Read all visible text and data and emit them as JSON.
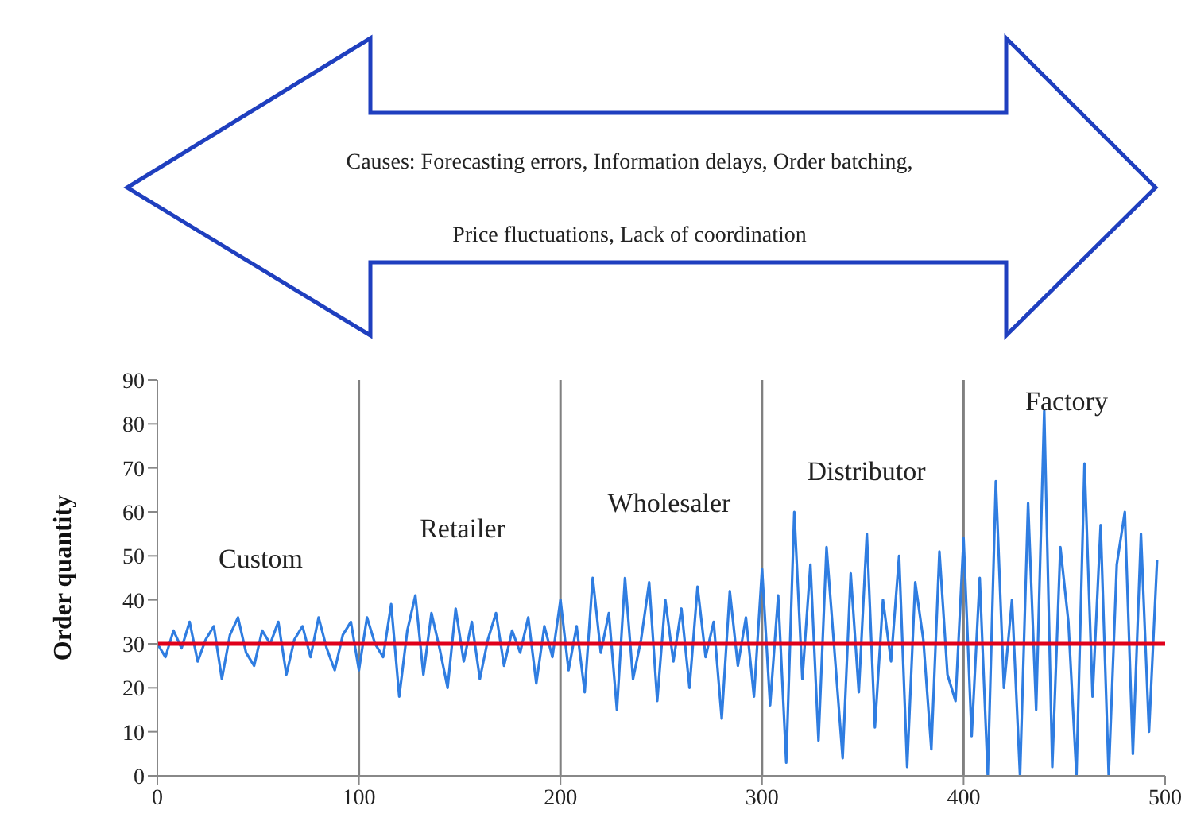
{
  "chart_data": {
    "type": "line",
    "ylabel": "Order quantity",
    "x": [
      0,
      4,
      8,
      12,
      16,
      20,
      24,
      28,
      32,
      36,
      40,
      44,
      48,
      52,
      56,
      60,
      64,
      68,
      72,
      76,
      80,
      84,
      88,
      92,
      96,
      100,
      104,
      108,
      112,
      116,
      120,
      124,
      128,
      132,
      136,
      140,
      144,
      148,
      152,
      156,
      160,
      164,
      168,
      172,
      176,
      180,
      184,
      188,
      192,
      196,
      200,
      204,
      208,
      212,
      216,
      220,
      224,
      228,
      232,
      236,
      240,
      244,
      248,
      252,
      256,
      260,
      264,
      268,
      272,
      276,
      280,
      284,
      288,
      292,
      296,
      300,
      304,
      308,
      312,
      316,
      320,
      324,
      328,
      332,
      336,
      340,
      344,
      348,
      352,
      356,
      360,
      364,
      368,
      372,
      376,
      380,
      384,
      388,
      392,
      396,
      400,
      404,
      408,
      412,
      416,
      420,
      424,
      428,
      432,
      436,
      440,
      444,
      448,
      452,
      456,
      460,
      464,
      468,
      472,
      476,
      480,
      484,
      488,
      492,
      496
    ],
    "series": [
      {
        "color": "#2f7de1",
        "values": [
          30,
          27,
          33,
          29,
          35,
          26,
          31,
          34,
          22,
          32,
          36,
          28,
          25,
          33,
          30,
          35,
          23,
          31,
          34,
          27,
          36,
          29,
          24,
          32,
          35,
          24,
          36,
          30,
          27,
          39,
          18,
          33,
          41,
          23,
          37,
          29,
          20,
          38,
          26,
          35,
          22,
          31,
          37,
          25,
          33,
          28,
          36,
          21,
          34,
          27,
          40,
          24,
          34,
          19,
          45,
          28,
          37,
          15,
          45,
          22,
          31,
          44,
          17,
          40,
          26,
          38,
          20,
          43,
          27,
          35,
          13,
          42,
          25,
          36,
          18,
          47,
          16,
          41,
          3,
          60,
          22,
          48,
          8,
          52,
          28,
          4,
          46,
          19,
          55,
          11,
          40,
          26,
          50,
          2,
          44,
          31,
          6,
          51,
          23,
          17,
          54,
          9,
          45,
          0,
          67,
          20,
          40,
          0,
          62,
          15,
          83,
          2,
          52,
          35,
          0,
          71,
          18,
          57,
          0,
          48,
          60,
          5,
          55,
          10,
          49
        ]
      }
    ],
    "xlim": [
      0,
      500
    ],
    "xticks": [
      0,
      100,
      200,
      300,
      400,
      500
    ],
    "ylim": [
      0,
      90
    ],
    "yticks": [
      0,
      10,
      20,
      30,
      40,
      50,
      60,
      70,
      80,
      90
    ],
    "grid": false,
    "legend": false,
    "marker": "none",
    "line_style": "solid",
    "ref_lines": [
      {
        "axis": "y",
        "value": 30,
        "color": "#e0001b"
      },
      {
        "axis": "x",
        "value": 100,
        "color": "#808080"
      },
      {
        "axis": "x",
        "value": 200,
        "color": "#808080"
      },
      {
        "axis": "x",
        "value": 300,
        "color": "#808080"
      },
      {
        "axis": "x",
        "value": 400,
        "color": "#808080"
      }
    ],
    "annotations": [
      "Causes: Forecasting errors, Information delays, Order batching,",
      "Price fluctuations, Lack of coordination",
      "Custom",
      "Retailer",
      "Wholesaler",
      "Distributor",
      "Factory"
    ]
  }
}
